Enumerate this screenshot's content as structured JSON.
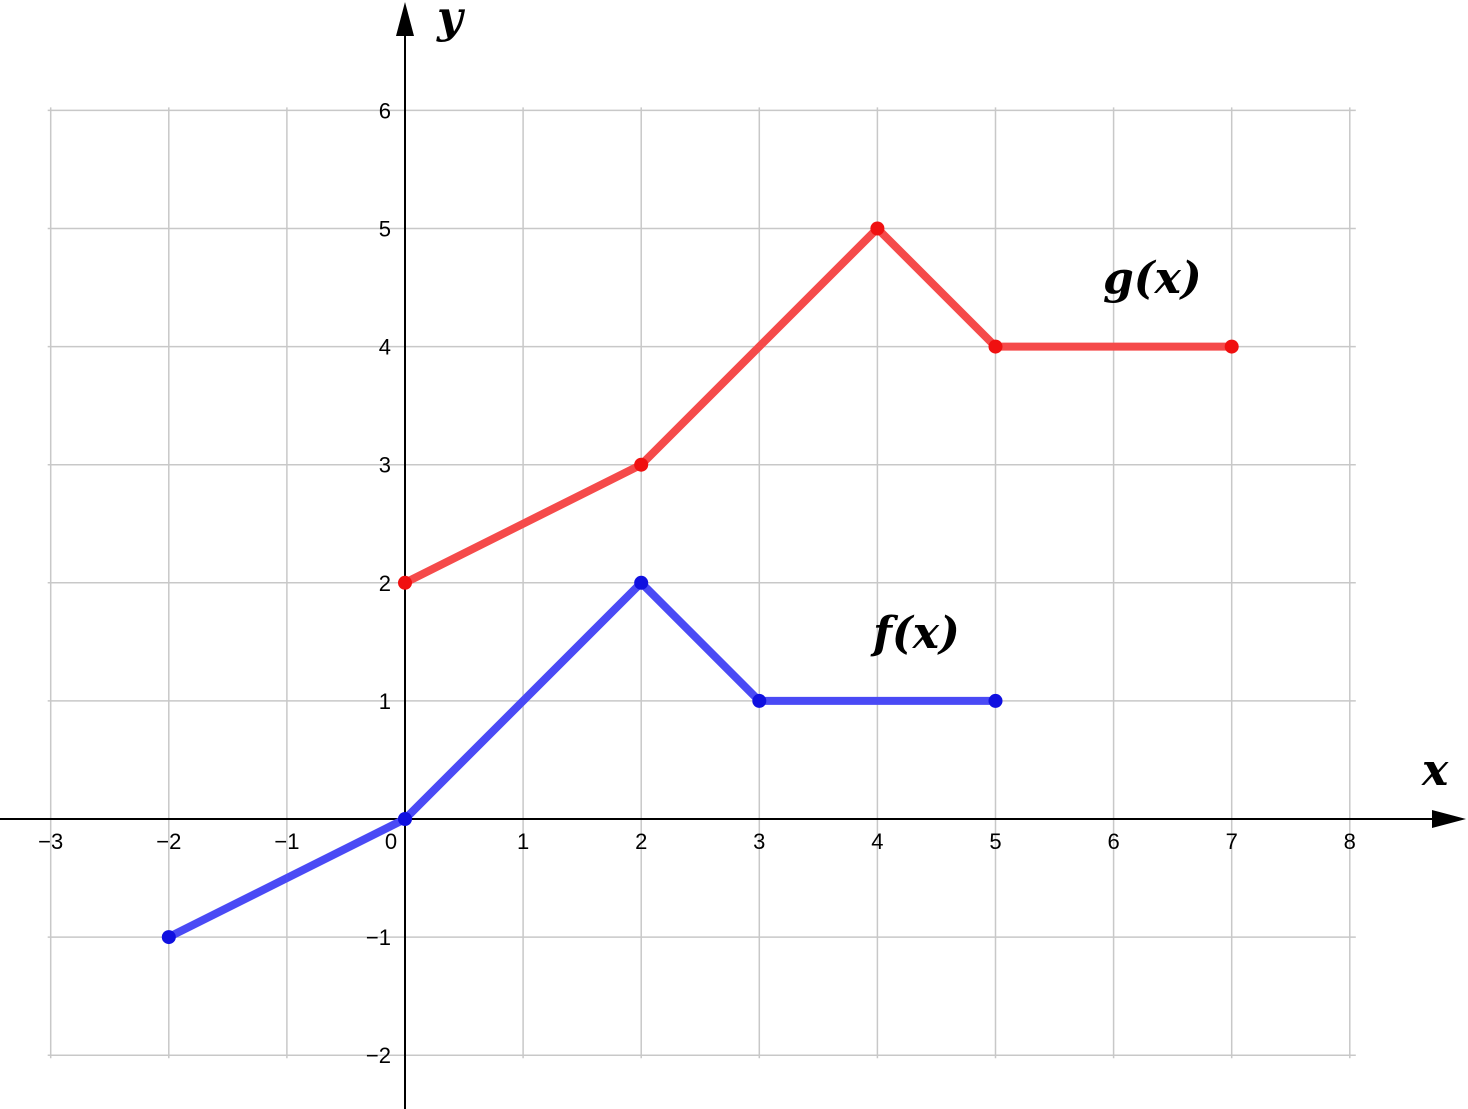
{
  "chart_data": {
    "type": "line",
    "xlabel": "x",
    "ylabel": "y",
    "xlim": [
      -3,
      8
    ],
    "ylim": [
      -2,
      6
    ],
    "x_ticks": [
      "−3",
      "−2",
      "−1",
      "0",
      "1",
      "2",
      "3",
      "4",
      "5",
      "6",
      "7",
      "8"
    ],
    "y_ticks": [
      "−2",
      "−1",
      "1",
      "2",
      "3",
      "4",
      "5",
      "6"
    ],
    "grid": true,
    "series": [
      {
        "name": "f(x)",
        "color": "#4a4af5",
        "marker_color": "#1010e0",
        "x": [
          -2,
          0,
          2,
          3,
          5
        ],
        "y": [
          -1,
          0,
          2,
          1,
          1
        ]
      },
      {
        "name": "g(x)",
        "color": "#f54a4a",
        "marker_color": "#f01010",
        "x": [
          0,
          2,
          4,
          5,
          7
        ],
        "y": [
          2,
          3,
          5,
          4,
          4
        ]
      }
    ]
  }
}
